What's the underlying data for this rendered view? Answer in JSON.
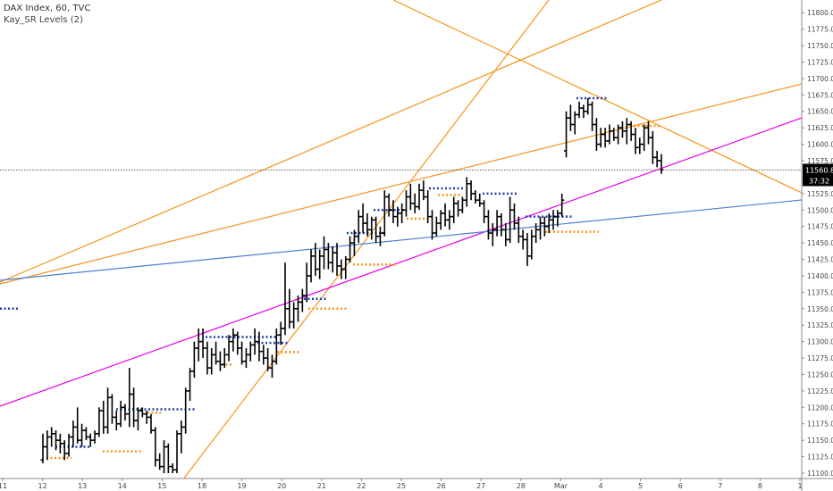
{
  "header": {
    "symbol_line": "DAX Index, 60, TVC",
    "indicator_line": "Kay_SR Levels (2)"
  },
  "colors": {
    "candle": "#000000",
    "orange": "#f7931a",
    "magenta": "#e600e6",
    "blue": "#4a7fd4",
    "sr_blue": "#1f3fa8",
    "sr_orange": "#f7931a"
  },
  "chart_data": {
    "type": "ohlc",
    "ylim": [
      11100,
      11812.5
    ],
    "y_ticks": [
      "11800.0",
      "11775.0",
      "11750.0",
      "11725.0",
      "11700.0",
      "11675.0",
      "11650.0",
      "11625.0",
      "11600.0",
      "11575.0",
      "11550.0",
      "11525.0",
      "11500.0",
      "11475.0",
      "11450.0",
      "11425.0",
      "11400.0",
      "11375.0",
      "11350.0",
      "11325.0",
      "11300.0",
      "11275.0",
      "11250.0",
      "11225.0",
      "11200.0",
      "11175.0",
      "11150.0",
      "11125.0",
      "11100.0"
    ],
    "x_ticks": [
      "11",
      "12",
      "13",
      "14",
      "15",
      "18",
      "19",
      "20",
      "21",
      "22",
      "25",
      "26",
      "27",
      "28",
      "Mar",
      "4",
      "5",
      "6",
      "7",
      "8",
      "1"
    ],
    "last_price_label": "11560.8",
    "countdown_label": "37:32",
    "last_price": 11560.8,
    "bars": [
      [
        11120,
        11160,
        11115,
        11140
      ],
      [
        11140,
        11165,
        11120,
        11155
      ],
      [
        11155,
        11170,
        11140,
        11160
      ],
      [
        11160,
        11165,
        11135,
        11150
      ],
      [
        11150,
        11160,
        11130,
        11145
      ],
      [
        11145,
        11150,
        11120,
        11130
      ],
      [
        11130,
        11160,
        11125,
        11155
      ],
      [
        11155,
        11180,
        11140,
        11170
      ],
      [
        11170,
        11200,
        11145,
        11150
      ],
      [
        11150,
        11175,
        11140,
        11165
      ],
      [
        11165,
        11170,
        11150,
        11155
      ],
      [
        11155,
        11160,
        11140,
        11150
      ],
      [
        11150,
        11165,
        11145,
        11160
      ],
      [
        11160,
        11200,
        11155,
        11195
      ],
      [
        11195,
        11210,
        11160,
        11170
      ],
      [
        11170,
        11230,
        11160,
        11215
      ],
      [
        11215,
        11220,
        11175,
        11185
      ],
      [
        11185,
        11195,
        11165,
        11175
      ],
      [
        11175,
        11210,
        11170,
        11200
      ],
      [
        11200,
        11205,
        11180,
        11190
      ],
      [
        11190,
        11260,
        11170,
        11220
      ],
      [
        11220,
        11230,
        11170,
        11180
      ],
      [
        11180,
        11200,
        11165,
        11195
      ],
      [
        11195,
        11200,
        11185,
        11190
      ],
      [
        11190,
        11195,
        11175,
        11185
      ],
      [
        11185,
        11190,
        11160,
        11165
      ],
      [
        11165,
        11170,
        11110,
        11120
      ],
      [
        11120,
        11130,
        11105,
        11110
      ],
      [
        11110,
        11150,
        11100,
        11140
      ],
      [
        11140,
        11145,
        11100,
        11110
      ],
      [
        11110,
        11115,
        11100,
        11105
      ],
      [
        11105,
        11165,
        11100,
        11160
      ],
      [
        11160,
        11180,
        11130,
        11170
      ],
      [
        11170,
        11230,
        11160,
        11225
      ],
      [
        11225,
        11260,
        11210,
        11255
      ],
      [
        11255,
        11300,
        11245,
        11290
      ],
      [
        11290,
        11320,
        11270,
        11300
      ],
      [
        11300,
        11320,
        11275,
        11290
      ],
      [
        11290,
        11300,
        11250,
        11260
      ],
      [
        11260,
        11290,
        11250,
        11280
      ],
      [
        11280,
        11300,
        11265,
        11270
      ],
      [
        11270,
        11285,
        11255,
        11265
      ],
      [
        11265,
        11290,
        11260,
        11280
      ],
      [
        11280,
        11310,
        11270,
        11300
      ],
      [
        11300,
        11320,
        11285,
        11310
      ],
      [
        11310,
        11315,
        11280,
        11290
      ],
      [
        11290,
        11300,
        11265,
        11270
      ],
      [
        11270,
        11290,
        11260,
        11280
      ],
      [
        11280,
        11300,
        11270,
        11295
      ],
      [
        11295,
        11320,
        11280,
        11300
      ],
      [
        11300,
        11315,
        11270,
        11285
      ],
      [
        11285,
        11295,
        11265,
        11275
      ],
      [
        11275,
        11290,
        11255,
        11260
      ],
      [
        11260,
        11280,
        11245,
        11270
      ],
      [
        11270,
        11320,
        11265,
        11310
      ],
      [
        11310,
        11330,
        11295,
        11320
      ],
      [
        11320,
        11420,
        11310,
        11350
      ],
      [
        11350,
        11380,
        11320,
        11330
      ],
      [
        11330,
        11360,
        11320,
        11350
      ],
      [
        11350,
        11370,
        11330,
        11360
      ],
      [
        11360,
        11380,
        11345,
        11370
      ],
      [
        11370,
        11420,
        11360,
        11400
      ],
      [
        11400,
        11440,
        11390,
        11430
      ],
      [
        11430,
        11450,
        11400,
        11410
      ],
      [
        11410,
        11440,
        11395,
        11430
      ],
      [
        11430,
        11460,
        11410,
        11440
      ],
      [
        11440,
        11450,
        11410,
        11420
      ],
      [
        11420,
        11445,
        11405,
        11435
      ],
      [
        11435,
        11450,
        11400,
        11415
      ],
      [
        11415,
        11425,
        11395,
        11410
      ],
      [
        11410,
        11430,
        11395,
        11425
      ],
      [
        11425,
        11460,
        11420,
        11450
      ],
      [
        11450,
        11470,
        11430,
        11460
      ],
      [
        11460,
        11500,
        11450,
        11490
      ],
      [
        11490,
        11510,
        11465,
        11480
      ],
      [
        11480,
        11495,
        11460,
        11470
      ],
      [
        11470,
        11490,
        11455,
        11485
      ],
      [
        11485,
        11490,
        11450,
        11460
      ],
      [
        11460,
        11475,
        11445,
        11465
      ],
      [
        11465,
        11530,
        11460,
        11520
      ],
      [
        11520,
        11525,
        11490,
        11500
      ],
      [
        11500,
        11515,
        11480,
        11490
      ],
      [
        11490,
        11505,
        11475,
        11495
      ],
      [
        11495,
        11510,
        11480,
        11500
      ],
      [
        11500,
        11530,
        11490,
        11520
      ],
      [
        11520,
        11540,
        11500,
        11510
      ],
      [
        11510,
        11525,
        11495,
        11505
      ],
      [
        11505,
        11540,
        11500,
        11530
      ],
      [
        11530,
        11545,
        11515,
        11520
      ],
      [
        11520,
        11530,
        11480,
        11490
      ],
      [
        11490,
        11500,
        11455,
        11465
      ],
      [
        11465,
        11490,
        11460,
        11480
      ],
      [
        11480,
        11500,
        11470,
        11495
      ],
      [
        11495,
        11510,
        11475,
        11485
      ],
      [
        11485,
        11500,
        11470,
        11490
      ],
      [
        11490,
        11520,
        11480,
        11510
      ],
      [
        11510,
        11515,
        11490,
        11500
      ],
      [
        11500,
        11520,
        11495,
        11515
      ],
      [
        11515,
        11550,
        11505,
        11540
      ],
      [
        11540,
        11545,
        11515,
        11525
      ],
      [
        11525,
        11530,
        11510,
        11515
      ],
      [
        11515,
        11525,
        11505,
        11510
      ],
      [
        11510,
        11515,
        11480,
        11490
      ],
      [
        11490,
        11500,
        11455,
        11465
      ],
      [
        11465,
        11480,
        11445,
        11470
      ],
      [
        11470,
        11500,
        11460,
        11490
      ],
      [
        11490,
        11495,
        11460,
        11470
      ],
      [
        11470,
        11480,
        11445,
        11455
      ],
      [
        11455,
        11520,
        11450,
        11500
      ],
      [
        11500,
        11510,
        11470,
        11480
      ],
      [
        11480,
        11490,
        11450,
        11460
      ],
      [
        11460,
        11470,
        11440,
        11455
      ],
      [
        11455,
        11465,
        11415,
        11430
      ],
      [
        11430,
        11470,
        11425,
        11460
      ],
      [
        11460,
        11480,
        11450,
        11470
      ],
      [
        11470,
        11490,
        11455,
        11480
      ],
      [
        11480,
        11490,
        11460,
        11475
      ],
      [
        11475,
        11495,
        11465,
        11485
      ],
      [
        11485,
        11500,
        11470,
        11490
      ],
      [
        11490,
        11500,
        11475,
        11495
      ],
      [
        11495,
        11525,
        11490,
        11515
      ],
      [
        11590,
        11650,
        11580,
        11640
      ],
      [
        11640,
        11660,
        11620,
        11630
      ],
      [
        11630,
        11650,
        11615,
        11645
      ],
      [
        11645,
        11665,
        11640,
        11655
      ],
      [
        11655,
        11660,
        11640,
        11650
      ],
      [
        11650,
        11670,
        11645,
        11660
      ],
      [
        11660,
        11665,
        11620,
        11630
      ],
      [
        11630,
        11640,
        11590,
        11600
      ],
      [
        11600,
        11625,
        11595,
        11615
      ],
      [
        11615,
        11625,
        11595,
        11605
      ],
      [
        11605,
        11630,
        11600,
        11620
      ],
      [
        11620,
        11625,
        11605,
        11610
      ],
      [
        11610,
        11630,
        11600,
        11625
      ],
      [
        11625,
        11635,
        11610,
        11620
      ],
      [
        11620,
        11640,
        11600,
        11630
      ],
      [
        11630,
        11635,
        11605,
        11615
      ],
      [
        11615,
        11625,
        11585,
        11595
      ],
      [
        11595,
        11610,
        11585,
        11600
      ],
      [
        11600,
        11630,
        11590,
        11625
      ],
      [
        11625,
        11635,
        11600,
        11610
      ],
      [
        11610,
        11620,
        11570,
        11580
      ],
      [
        11580,
        11590,
        11565,
        11575
      ],
      [
        11575,
        11585,
        11555,
        11561
      ]
    ]
  }
}
